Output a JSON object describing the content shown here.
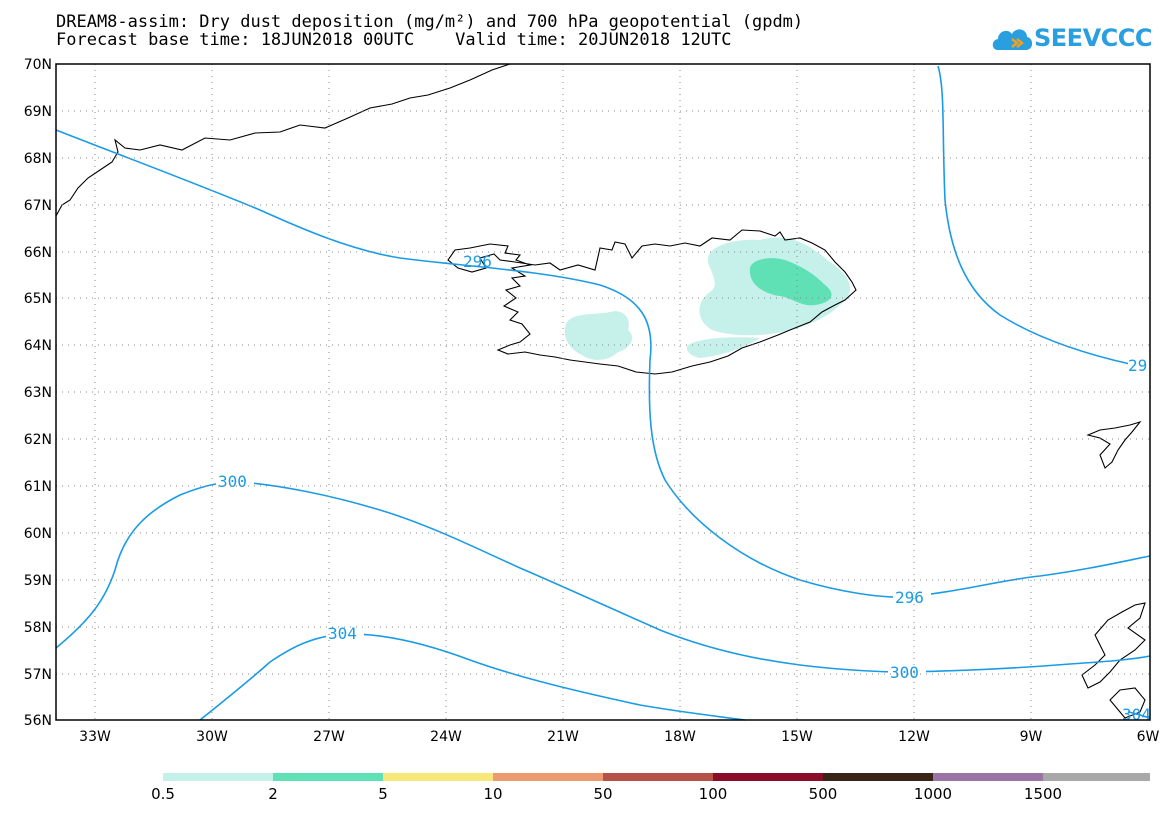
{
  "title": {
    "line1": "DREAM8-assim: Dry dust deposition (mg/m²) and 700 hPa geopotential (gpdm)",
    "line2": "Forecast base time: 18JUN2018 00UTC    Valid time: 20JUN2018 12UTC"
  },
  "logo": {
    "text": "SEEVCCC",
    "color": "#2a9fe0"
  },
  "map": {
    "lon_range": [
      -34.2,
      -6
    ],
    "lat_range": [
      56,
      70
    ],
    "lat_ticks": [
      "70N",
      "69N",
      "68N",
      "67N",
      "66N",
      "65N",
      "64N",
      "63N",
      "62N",
      "61N",
      "60N",
      "59N",
      "58N",
      "57N",
      "56N"
    ],
    "lon_ticks": [
      "33W",
      "30W",
      "27W",
      "24W",
      "21W",
      "18W",
      "15W",
      "12W",
      "9W",
      "6W"
    ],
    "contour_color": "#1a9be6",
    "contour_labels": [
      "296",
      "300",
      "304",
      "296",
      "300",
      "29",
      "304"
    ]
  },
  "legend": {
    "colors": [
      "#c6f0ea",
      "#5fe0b5",
      "#f8e87a",
      "#ec9a70",
      "#b4524a",
      "#8a0e2a",
      "#3a2418",
      "#9a74a4",
      "#a8a8a8"
    ],
    "labels": [
      "0.5",
      "2",
      "5",
      "10",
      "50",
      "100",
      "500",
      "1000",
      "1500"
    ]
  }
}
